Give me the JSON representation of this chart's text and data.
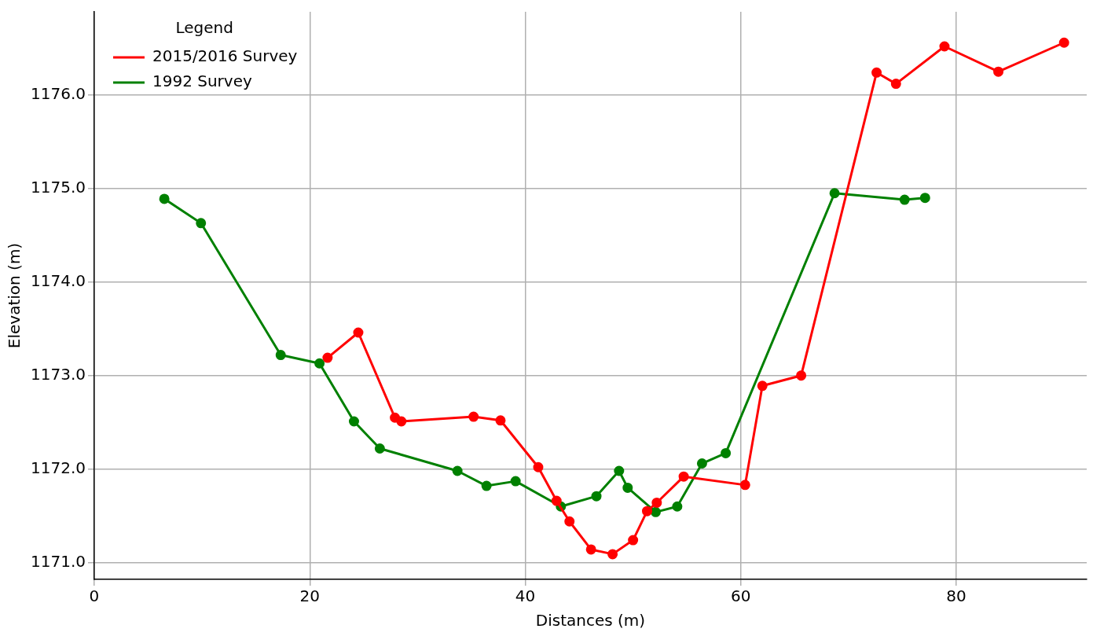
{
  "chart_data": {
    "type": "line",
    "xlabel": "Distances (m)",
    "ylabel": "Elevation (m)",
    "legend_title": "Legend",
    "legend": "top left",
    "grid": true,
    "marker": "circle",
    "line_style": "solid",
    "xlim": [
      0,
      92.1
    ],
    "xticks": [
      0,
      20,
      40,
      60,
      80
    ],
    "ylim": [
      1170.82,
      1176.89
    ],
    "yticks": [
      {
        "value": 1171,
        "label": "1171.0"
      },
      {
        "value": 1172,
        "label": "1172.0"
      },
      {
        "value": 1173,
        "label": "1173.0"
      },
      {
        "value": 1174,
        "label": "1174.0"
      },
      {
        "value": 1175,
        "label": "1175.0"
      },
      {
        "value": 1176,
        "label": "1176.0"
      }
    ],
    "series": [
      {
        "name": "2015/2016 Survey",
        "color": "#ff0000",
        "x": [
          21.65,
          24.5,
          27.9,
          28.5,
          35.2,
          37.7,
          41.2,
          42.9,
          44.1,
          46.1,
          48.1,
          50.0,
          51.3,
          52.2,
          54.7,
          60.4,
          62.0,
          65.6,
          72.6,
          74.4,
          78.9,
          83.9,
          90.0
        ],
        "values": [
          1173.19,
          1173.46,
          1172.55,
          1172.51,
          1172.56,
          1172.52,
          1172.02,
          1171.66,
          1171.44,
          1171.14,
          1171.09,
          1171.24,
          1171.55,
          1171.64,
          1171.92,
          1171.83,
          1172.89,
          1173.0,
          1176.24,
          1176.12,
          1176.52,
          1176.25,
          1176.56
        ]
      },
      {
        "name": "1992 Survey",
        "color": "#008000",
        "x": [
          6.5,
          9.9,
          17.3,
          20.9,
          24.1,
          26.5,
          33.7,
          36.4,
          39.1,
          43.3,
          46.6,
          48.7,
          49.5,
          52.1,
          54.1,
          56.4,
          58.6,
          68.7,
          75.2,
          77.1
        ],
        "values": [
          1174.89,
          1174.63,
          1173.22,
          1173.13,
          1172.51,
          1172.22,
          1171.98,
          1171.82,
          1171.87,
          1171.6,
          1171.71,
          1171.98,
          1171.8,
          1171.54,
          1171.6,
          1172.06,
          1172.17,
          1174.95,
          1174.88,
          1174.9
        ]
      }
    ]
  }
}
